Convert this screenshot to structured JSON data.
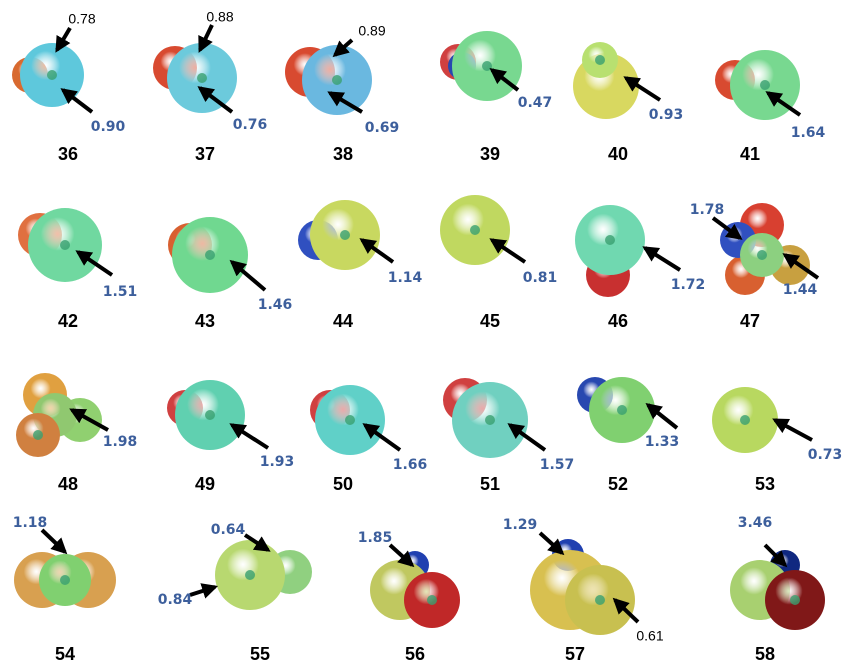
{
  "molecules": [
    {
      "id": "36",
      "values": [
        "0.78",
        "0.90"
      ]
    },
    {
      "id": "37",
      "values": [
        "0.88",
        "0.76"
      ]
    },
    {
      "id": "38",
      "values": [
        "0.89",
        "0.69"
      ]
    },
    {
      "id": "39",
      "values": [
        "0.47"
      ]
    },
    {
      "id": "40",
      "values": [
        "0.93"
      ]
    },
    {
      "id": "41",
      "values": [
        "1.64"
      ]
    },
    {
      "id": "42",
      "values": [
        "1.51"
      ]
    },
    {
      "id": "43",
      "values": [
        "1.46"
      ]
    },
    {
      "id": "44",
      "values": [
        "1.14"
      ]
    },
    {
      "id": "45",
      "values": [
        "0.81"
      ]
    },
    {
      "id": "46",
      "values": [
        "1.72"
      ]
    },
    {
      "id": "47",
      "values": [
        "1.78",
        "1.44"
      ]
    },
    {
      "id": "48",
      "values": [
        "1.98"
      ]
    },
    {
      "id": "49",
      "values": [
        "1.93"
      ]
    },
    {
      "id": "50",
      "values": [
        "1.66"
      ]
    },
    {
      "id": "51",
      "values": [
        "1.57"
      ]
    },
    {
      "id": "52",
      "values": [
        "1.33"
      ]
    },
    {
      "id": "53",
      "values": [
        "0.73"
      ]
    },
    {
      "id": "54",
      "values": [
        "1.18"
      ]
    },
    {
      "id": "55",
      "values": [
        "0.64",
        "0.84"
      ]
    },
    {
      "id": "56",
      "values": [
        "1.85"
      ]
    },
    {
      "id": "57",
      "values": [
        "1.29",
        "0.61"
      ]
    },
    {
      "id": "58",
      "values": [
        "3.46"
      ]
    }
  ]
}
